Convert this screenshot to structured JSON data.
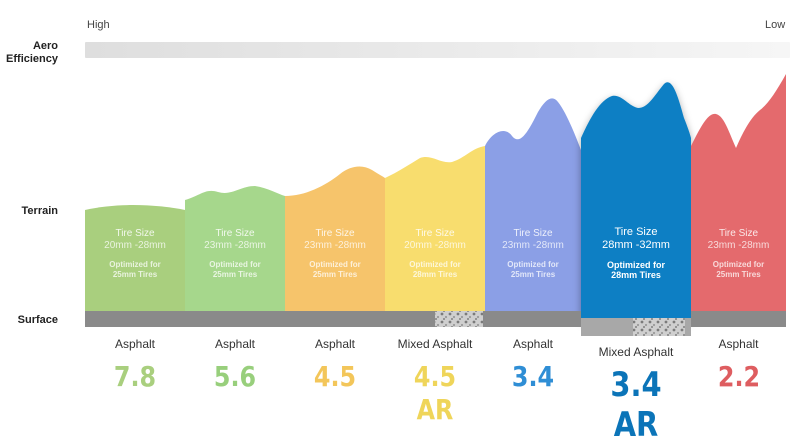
{
  "labels": {
    "aero": "Aero\nEfficiency",
    "aero_high": "High",
    "aero_low": "Low",
    "terrain": "Terrain",
    "surface": "Surface"
  },
  "colors": {
    "terrain": [
      "#a9cf7e",
      "#a6d78c",
      "#f6c46b",
      "#f8dd6e",
      "#8b9fe6",
      "#0b7fc4",
      "#e46a6d"
    ],
    "scores": [
      "#a9cf7e",
      "#98cf7c",
      "#f3c65a",
      "#efd55a",
      "#2f8ed5",
      "#0b74b8",
      "#de5d60"
    ],
    "surface_bar": "#8a8a8a",
    "featured_surface_bar": "#a8a8a8"
  },
  "columns": [
    {
      "tire_title": "Tire Size",
      "tire_range": "20mm -28mm",
      "optimized": "Optimized for\n25mm Tires",
      "surface": "Asphalt",
      "score": "7.8",
      "featured": false
    },
    {
      "tire_title": "Tire Size",
      "tire_range": "23mm -28mm",
      "optimized": "Optimized for\n25mm Tires",
      "surface": "Asphalt",
      "score": "5.6",
      "featured": false
    },
    {
      "tire_title": "Tire Size",
      "tire_range": "23mm -28mm",
      "optimized": "Optimized for\n25mm Tires",
      "surface": "Asphalt",
      "score": "4.5",
      "featured": false
    },
    {
      "tire_title": "Tire Size",
      "tire_range": "20mm -28mm",
      "optimized": "Optimized for\n28mm Tires",
      "surface": "Mixed Asphalt",
      "score": "4.5 AR",
      "featured": false
    },
    {
      "tire_title": "Tire Size",
      "tire_range": "23mm -28mm",
      "optimized": "Optimized for\n25mm Tires",
      "surface": "Asphalt",
      "score": "3.4",
      "featured": false
    },
    {
      "tire_title": "Tire Size",
      "tire_range": "28mm -32mm",
      "optimized": "Optimized for\n28mm Tires",
      "surface": "Mixed Asphalt",
      "score": "3.4 AR",
      "featured": true
    },
    {
      "tire_title": "Tire Size",
      "tire_range": "23mm -28mm",
      "optimized": "Optimized for\n25mm Tires",
      "surface": "Asphalt",
      "score": "2.2",
      "featured": false
    }
  ]
}
